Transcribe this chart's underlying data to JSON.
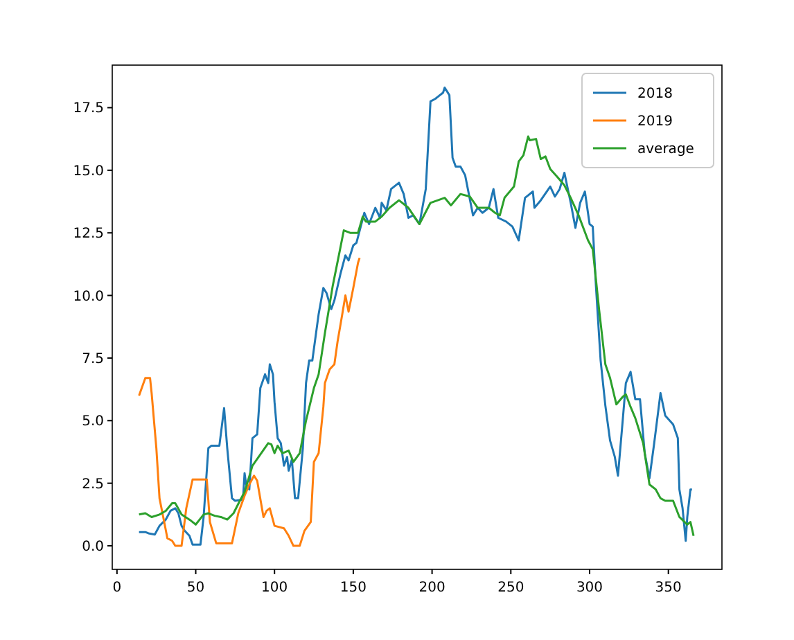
{
  "chart_data": {
    "type": "line",
    "xlim": [
      -3,
      384
    ],
    "ylim": [
      -0.94,
      19.2
    ],
    "xticks": [
      0,
      50,
      100,
      150,
      200,
      250,
      300,
      350
    ],
    "yticks": [
      {
        "value": 0,
        "label": "0.0"
      },
      {
        "value": 2.5,
        "label": "2.5"
      },
      {
        "value": 5,
        "label": "5.0"
      },
      {
        "value": 7.5,
        "label": "7.5"
      },
      {
        "value": 10,
        "label": "10.0"
      },
      {
        "value": 12.5,
        "label": "12.5"
      },
      {
        "value": 15,
        "label": "15.0"
      },
      {
        "value": 17.5,
        "label": "17.5"
      }
    ],
    "legend": "top right",
    "grid": false,
    "series": [
      {
        "name": "2018",
        "color": "#1f77b4",
        "x": [
          14,
          18,
          20,
          24,
          27,
          31,
          34,
          37,
          39,
          41,
          43,
          46,
          48,
          53,
          55,
          58,
          60,
          65,
          66,
          68,
          70,
          73,
          75,
          80,
          81,
          82,
          84,
          86,
          89,
          91,
          94,
          96,
          97,
          99,
          100,
          102,
          104,
          106,
          108,
          109,
          111,
          113,
          115,
          118,
          120,
          122,
          124,
          128,
          131,
          133,
          136,
          138,
          142,
          145,
          147,
          150,
          152,
          157,
          160,
          164,
          167,
          168,
          171,
          174,
          179,
          182,
          185,
          188,
          192,
          196,
          199,
          202,
          204,
          207,
          208,
          211,
          213,
          215,
          218,
          221,
          226,
          229,
          232,
          236,
          239,
          242,
          247,
          251,
          255,
          259,
          264,
          265,
          269,
          275,
          278,
          281,
          284,
          288,
          291,
          294,
          297,
          300,
          302,
          304,
          307,
          310,
          313,
          316,
          318,
          321,
          323,
          326,
          329,
          332,
          335,
          338,
          341,
          345,
          348,
          353,
          356,
          357,
          359,
          361,
          362,
          364,
          365
        ],
        "values": [
          0.55,
          0.55,
          0.5,
          0.45,
          0.8,
          1.05,
          1.4,
          1.5,
          1.3,
          0.8,
          0.6,
          0.4,
          0.05,
          0.05,
          1.15,
          3.9,
          4.0,
          4.0,
          4.5,
          5.5,
          3.9,
          1.9,
          1.8,
          1.85,
          2.9,
          2.45,
          2.25,
          4.3,
          4.45,
          6.3,
          6.85,
          6.5,
          7.25,
          6.85,
          5.75,
          4.3,
          4.1,
          3.2,
          3.55,
          3.0,
          3.45,
          1.9,
          1.9,
          3.9,
          6.5,
          7.4,
          7.4,
          9.25,
          10.3,
          10.1,
          9.45,
          9.8,
          10.9,
          11.6,
          11.4,
          12.0,
          12.1,
          13.3,
          12.85,
          13.5,
          13.1,
          13.7,
          13.4,
          14.25,
          14.5,
          14.05,
          13.1,
          13.2,
          12.85,
          14.25,
          17.75,
          17.85,
          17.95,
          18.1,
          18.3,
          18.0,
          15.5,
          15.15,
          15.15,
          14.8,
          13.2,
          13.5,
          13.3,
          13.5,
          14.25,
          13.1,
          12.95,
          12.75,
          12.2,
          13.9,
          14.15,
          13.5,
          13.8,
          14.35,
          13.95,
          14.25,
          14.9,
          13.7,
          12.7,
          13.7,
          14.15,
          12.85,
          12.75,
          10.4,
          7.4,
          5.6,
          4.2,
          3.55,
          2.8,
          5.0,
          6.5,
          6.95,
          5.85,
          5.85,
          3.7,
          2.7,
          4.1,
          6.1,
          5.2,
          4.85,
          4.3,
          2.25,
          1.5,
          0.2,
          1.15,
          2.25,
          2.25
        ]
      },
      {
        "name": "2019",
        "color": "#ff7f0e",
        "x": [
          14,
          18,
          21,
          22,
          25,
          27,
          30,
          32,
          35,
          37,
          41,
          44,
          48,
          55,
          57,
          59,
          63,
          73,
          77,
          81,
          84,
          87,
          89,
          93,
          95,
          97,
          100,
          106,
          109,
          112,
          116,
          119,
          123,
          125,
          128,
          131,
          132,
          135,
          138,
          140,
          143,
          145,
          147,
          150,
          153,
          154
        ],
        "values": [
          6.0,
          6.7,
          6.7,
          6.1,
          3.9,
          1.9,
          0.95,
          0.3,
          0.2,
          0,
          0,
          1.5,
          2.65,
          2.65,
          2.65,
          0.95,
          0.1,
          0.1,
          1.3,
          2.0,
          2.45,
          2.8,
          2.6,
          1.15,
          1.4,
          1.5,
          0.8,
          0.7,
          0.4,
          0,
          0,
          0.6,
          0.95,
          3.35,
          3.7,
          5.55,
          6.5,
          7.05,
          7.25,
          8.15,
          9.25,
          10.0,
          9.35,
          10.3,
          11.3,
          11.5
        ]
      },
      {
        "name": "average",
        "color": "#2ca02c",
        "x": [
          14,
          18,
          22,
          27,
          31,
          35,
          37,
          41,
          47,
          50,
          55,
          58,
          62,
          66,
          70,
          74,
          78,
          81,
          86,
          91,
          96,
          98,
          100,
          102,
          105,
          109,
          112,
          116,
          120,
          125,
          128,
          132,
          137,
          141,
          144,
          148,
          153,
          156,
          158,
          164,
          168,
          173,
          179,
          185,
          192,
          199,
          208,
          212,
          218,
          224,
          229,
          236,
          240,
          243,
          246,
          252,
          255,
          258,
          261,
          262,
          266,
          269,
          272,
          275,
          280,
          284,
          288,
          293,
          299,
          302,
          306,
          310,
          313,
          317,
          321,
          323,
          326,
          329,
          334,
          338,
          342,
          345,
          348,
          353,
          357,
          362,
          364,
          366
        ],
        "values": [
          1.25,
          1.3,
          1.15,
          1.25,
          1.4,
          1.7,
          1.7,
          1.25,
          1.0,
          0.85,
          1.25,
          1.3,
          1.2,
          1.15,
          1.05,
          1.3,
          1.8,
          2.15,
          3.2,
          3.65,
          4.1,
          4.05,
          3.7,
          4.0,
          3.7,
          3.8,
          3.35,
          3.7,
          5.0,
          6.3,
          6.85,
          8.5,
          10.4,
          11.65,
          12.6,
          12.5,
          12.5,
          13.15,
          12.95,
          12.95,
          13.15,
          13.5,
          13.8,
          13.5,
          12.85,
          13.7,
          13.9,
          13.6,
          14.05,
          13.95,
          13.5,
          13.5,
          13.3,
          13.2,
          13.9,
          14.35,
          15.35,
          15.6,
          16.35,
          16.2,
          16.25,
          15.45,
          15.55,
          15.05,
          14.7,
          14.4,
          13.9,
          13.2,
          12.2,
          11.85,
          9.45,
          7.25,
          6.7,
          5.65,
          5.95,
          6.05,
          5.55,
          5.1,
          4.1,
          2.45,
          2.25,
          1.9,
          1.8,
          1.8,
          1.15,
          0.85,
          0.95,
          0.4
        ]
      }
    ]
  }
}
